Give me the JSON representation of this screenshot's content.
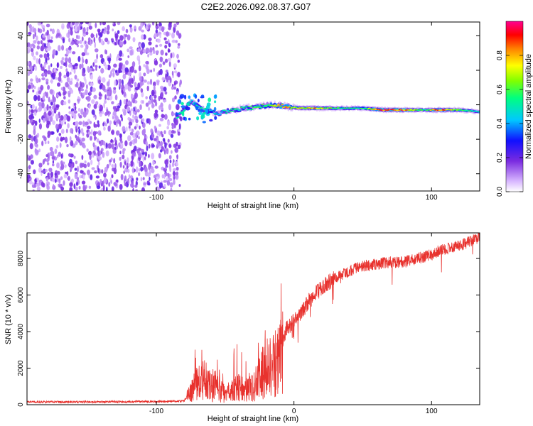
{
  "title": "C2E2.2026.092.08.37.G07",
  "chart_data": [
    {
      "type": "heatmap",
      "title": "C2E2.2026.092.08.37.G07",
      "xlabel": "Height of straight line (km)",
      "ylabel": "Frequency (Hz)",
      "xlim": [
        -194,
        135
      ],
      "ylim": [
        -50,
        48
      ],
      "x_ticks": [
        -100,
        0,
        100
      ],
      "y_ticks": [
        -40,
        -20,
        0,
        20,
        40
      ],
      "x_tick_labels": [
        "-100",
        "0",
        "100"
      ],
      "y_tick_labels": [
        "-40",
        "-20",
        "0",
        "20",
        "40"
      ],
      "colorbar": {
        "label": "Normalized spectral amplitude",
        "range": [
          0,
          1
        ],
        "ticks": [
          "0.0",
          "0.2",
          "0.4",
          "0.6",
          "0.8"
        ],
        "colormap": [
          "#ffffff",
          "#8a2be2",
          "#0000ff",
          "#00ffff",
          "#00ff00",
          "#ffff00",
          "#ff0000",
          "#ff00ff"
        ]
      },
      "noise_region_x": [
        -194,
        -82
      ],
      "ridge": [
        {
          "x": -85,
          "f": -7,
          "amp": 0.5
        },
        {
          "x": -80,
          "f": -3,
          "amp": 0.5
        },
        {
          "x": -75,
          "f": 2,
          "amp": 0.45
        },
        {
          "x": -65,
          "f": -3,
          "amp": 0.5
        },
        {
          "x": -55,
          "f": -5,
          "amp": 0.45
        },
        {
          "x": -45,
          "f": -3,
          "amp": 0.5
        },
        {
          "x": -35,
          "f": -2,
          "amp": 0.55
        },
        {
          "x": -25,
          "f": -1,
          "amp": 0.55
        },
        {
          "x": -15,
          "f": 0,
          "amp": 0.65
        },
        {
          "x": -5,
          "f": -1,
          "amp": 0.75
        },
        {
          "x": 5,
          "f": -2,
          "amp": 0.65
        },
        {
          "x": 15,
          "f": -2,
          "amp": 0.8
        },
        {
          "x": 30,
          "f": -2,
          "amp": 0.55
        },
        {
          "x": 50,
          "f": -2,
          "amp": 0.55
        },
        {
          "x": 65,
          "f": -3,
          "amp": 0.9
        },
        {
          "x": 80,
          "f": -3,
          "amp": 0.85
        },
        {
          "x": 95,
          "f": -3,
          "amp": 0.5
        },
        {
          "x": 105,
          "f": -3,
          "amp": 0.9
        },
        {
          "x": 120,
          "f": -3,
          "amp": 0.6
        },
        {
          "x": 135,
          "f": -4,
          "amp": 0.45
        }
      ]
    },
    {
      "type": "line",
      "xlabel": "Height of straight line (km)",
      "ylabel": "SNR (10 * v/v)",
      "xlim": [
        -194,
        135
      ],
      "ylim": [
        0,
        9400
      ],
      "x_ticks": [
        -100,
        0,
        100
      ],
      "y_ticks": [
        0,
        2000,
        4000,
        6000,
        8000
      ],
      "x_tick_labels": [
        "-100",
        "0",
        "100"
      ],
      "y_tick_labels": [
        "0",
        "2000",
        "4000",
        "6000",
        "8000"
      ],
      "color": "#e8322e",
      "series": [
        {
          "name": "SNR",
          "x": [
            -194,
            -150,
            -100,
            -80,
            -75,
            -70,
            -65,
            -60,
            -55,
            -50,
            -45,
            -40,
            -35,
            -30,
            -25,
            -20,
            -15,
            -12,
            -10,
            -8,
            -5,
            0,
            5,
            10,
            15,
            20,
            25,
            30,
            35,
            40,
            50,
            60,
            70,
            80,
            90,
            95,
            98,
            100,
            105,
            110,
            120,
            130,
            135
          ],
          "y": [
            150,
            150,
            170,
            200,
            700,
            1200,
            1400,
            1100,
            900,
            600,
            800,
            900,
            800,
            900,
            1500,
            2000,
            2300,
            2600,
            3000,
            3500,
            4200,
            4600,
            5000,
            5600,
            6000,
            6400,
            6700,
            6900,
            7100,
            7300,
            7600,
            7700,
            7800,
            7800,
            8000,
            8100,
            8200,
            8200,
            8400,
            8500,
            8700,
            9000,
            9200
          ]
        }
      ]
    }
  ]
}
